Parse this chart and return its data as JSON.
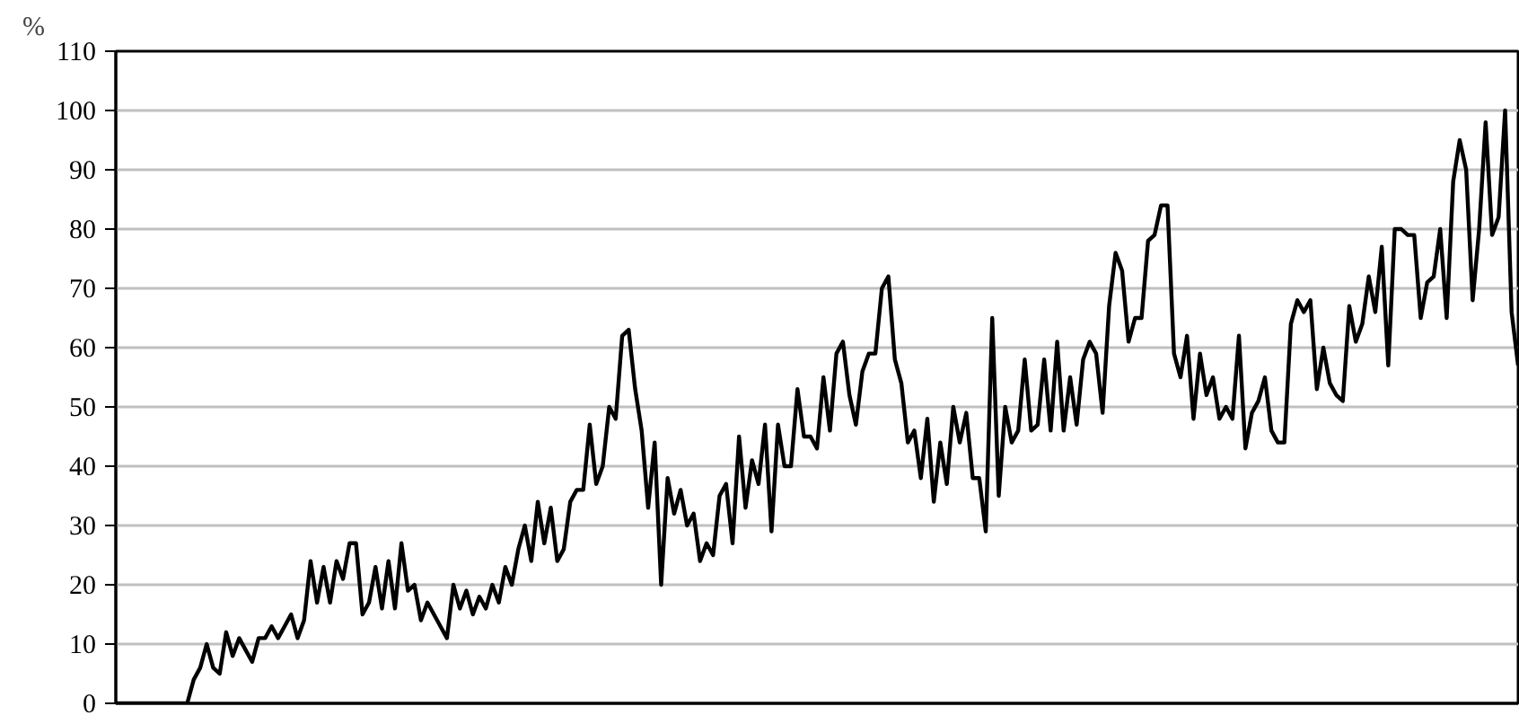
{
  "chart_data": {
    "type": "line",
    "ylabel": "%",
    "grid": "y",
    "ylim": [
      0,
      110
    ],
    "yticks": [
      0,
      10,
      20,
      30,
      40,
      50,
      60,
      70,
      80,
      90,
      100,
      110
    ],
    "categories": [
      null,
      null,
      null,
      null,
      null,
      null,
      null,
      null,
      null,
      null,
      null,
      null,
      null,
      null,
      null,
      null,
      null,
      null,
      null,
      null,
      null,
      null,
      null,
      null,
      null,
      null,
      null,
      null,
      null,
      null,
      null,
      null,
      null,
      null,
      null,
      null,
      null,
      null,
      null,
      null,
      null,
      null,
      null,
      null,
      null,
      null,
      null,
      null,
      null,
      null,
      null,
      null,
      null,
      null,
      null,
      null,
      null,
      null,
      null,
      null,
      null,
      null,
      null,
      null,
      null,
      null,
      null,
      null,
      null,
      null,
      null,
      null,
      null,
      null,
      null,
      null,
      null,
      null,
      null,
      null,
      null,
      null,
      null,
      null,
      null,
      null,
      null,
      null,
      null,
      null,
      null,
      null,
      null,
      null,
      null,
      null,
      null,
      null,
      null,
      null,
      null,
      null,
      null,
      null,
      null,
      null,
      null,
      null,
      null,
      null,
      null,
      null,
      null,
      null,
      null,
      null,
      null,
      null,
      null,
      null,
      null,
      null,
      null,
      null,
      null,
      null,
      null,
      null,
      null,
      null,
      null,
      null,
      null,
      null,
      null,
      null,
      null,
      null,
      null,
      null,
      null,
      null,
      null,
      null,
      null,
      null,
      null,
      null,
      null,
      null,
      null,
      null,
      null,
      null,
      null,
      null,
      null,
      null,
      null,
      null,
      null,
      null,
      null,
      null,
      null,
      null,
      null,
      null,
      null,
      null,
      null,
      null,
      null,
      null,
      null,
      null,
      null,
      null,
      null,
      null,
      null,
      null,
      null,
      null,
      null,
      null,
      null,
      null,
      null,
      null,
      null,
      null,
      null,
      null,
      null,
      null,
      null,
      null,
      null,
      null,
      null,
      null,
      null,
      null,
      null,
      null,
      null,
      null,
      null,
      null,
      null,
      null,
      null,
      null,
      null,
      null,
      null
    ],
    "series": [
      {
        "color": "#000000",
        "values": [
          0,
          0,
          0,
          0,
          0,
          0,
          0,
          0,
          0,
          0,
          0,
          0,
          4,
          6,
          10,
          6,
          5,
          12,
          8,
          11,
          9,
          7,
          11,
          11,
          13,
          11,
          13,
          15,
          11,
          14,
          24,
          17,
          23,
          17,
          24,
          21,
          27,
          27,
          15,
          17,
          23,
          16,
          24,
          16,
          27,
          19,
          20,
          14,
          17,
          15,
          13,
          11,
          20,
          16,
          19,
          15,
          18,
          16,
          20,
          17,
          23,
          20,
          26,
          30,
          24,
          34,
          27,
          33,
          24,
          26,
          34,
          36,
          36,
          47,
          37,
          40,
          50,
          48,
          62,
          63,
          53,
          46,
          33,
          44,
          20,
          38,
          32,
          36,
          30,
          32,
          24,
          27,
          25,
          35,
          37,
          27,
          45,
          33,
          41,
          37,
          47,
          29,
          47,
          40,
          40,
          53,
          45,
          45,
          43,
          55,
          46,
          59,
          61,
          52,
          47,
          56,
          59,
          59,
          70,
          72,
          58,
          54,
          44,
          46,
          38,
          48,
          34,
          44,
          37,
          50,
          44,
          49,
          38,
          38,
          29,
          65,
          35,
          50,
          44,
          46,
          58,
          46,
          47,
          58,
          46,
          61,
          46,
          55,
          47,
          58,
          61,
          59,
          49,
          67,
          76,
          73,
          61,
          65,
          65,
          78,
          79,
          84,
          84,
          59,
          55,
          62,
          48,
          59,
          52,
          55,
          48,
          50,
          48,
          62,
          43,
          49,
          51,
          55,
          46,
          44,
          44,
          64,
          68,
          66,
          68,
          53,
          60,
          54,
          52,
          51,
          67,
          61,
          64,
          72,
          66,
          77,
          57,
          80,
          80,
          79,
          79,
          65,
          71,
          72,
          80,
          65,
          88,
          95,
          90,
          68,
          80,
          98,
          79,
          82,
          100,
          66,
          57
        ]
      }
    ]
  }
}
